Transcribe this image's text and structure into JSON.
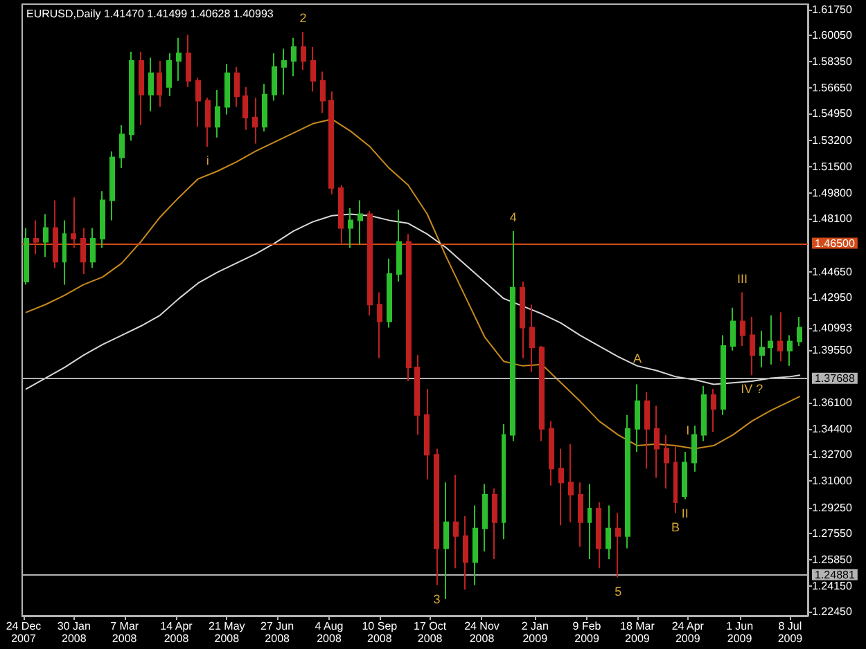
{
  "chart_data": {
    "type": "candlestick",
    "title": "EURUSD,Daily 1.41470 1.41499 1.40628 1.40993",
    "x": [
      "2007-12-26",
      "2008-01-02",
      "2008-01-09",
      "2008-01-16",
      "2008-01-23",
      "2008-01-30",
      "2008-02-06",
      "2008-02-13",
      "2008-02-20",
      "2008-02-27",
      "2008-03-05",
      "2008-03-12",
      "2008-03-19",
      "2008-03-26",
      "2008-04-02",
      "2008-04-09",
      "2008-04-16",
      "2008-04-23",
      "2008-04-30",
      "2008-05-07",
      "2008-05-14",
      "2008-05-21",
      "2008-05-28",
      "2008-06-04",
      "2008-06-11",
      "2008-06-18",
      "2008-06-25",
      "2008-07-02",
      "2008-07-09",
      "2008-07-16",
      "2008-07-23",
      "2008-07-30",
      "2008-08-06",
      "2008-08-13",
      "2008-08-20",
      "2008-08-27",
      "2008-09-03",
      "2008-09-10",
      "2008-09-17",
      "2008-09-24",
      "2008-10-01",
      "2008-10-08",
      "2008-10-15",
      "2008-10-22",
      "2008-10-29",
      "2008-11-05",
      "2008-11-12",
      "2008-11-19",
      "2008-11-26",
      "2008-12-03",
      "2008-12-10",
      "2008-12-17",
      "2008-12-24",
      "2008-12-31",
      "2009-01-07",
      "2009-01-14",
      "2009-01-21",
      "2009-01-28",
      "2009-02-04",
      "2009-02-11",
      "2009-02-18",
      "2009-02-25",
      "2009-03-04",
      "2009-03-11",
      "2009-03-18",
      "2009-03-25",
      "2009-04-01",
      "2009-04-08",
      "2009-04-15",
      "2009-04-22",
      "2009-04-29",
      "2009-05-06",
      "2009-05-13",
      "2009-05-20",
      "2009-05-27",
      "2009-06-03",
      "2009-06-10",
      "2009-06-17",
      "2009-06-24",
      "2009-07-01",
      "2009-07-08",
      "2009-07-15"
    ],
    "ohlc": [
      [
        1.44,
        1.475,
        1.438,
        1.468
      ],
      [
        1.468,
        1.48,
        1.458,
        1.466
      ],
      [
        1.466,
        1.484,
        1.456,
        1.475
      ],
      [
        1.475,
        1.493,
        1.449,
        1.453
      ],
      [
        1.453,
        1.48,
        1.438,
        1.471
      ],
      [
        1.471,
        1.495,
        1.462,
        1.468
      ],
      [
        1.468,
        1.475,
        1.445,
        1.453
      ],
      [
        1.453,
        1.475,
        1.449,
        1.468
      ],
      [
        1.468,
        1.499,
        1.462,
        1.493
      ],
      [
        1.493,
        1.525,
        1.48,
        1.521
      ],
      [
        1.521,
        1.542,
        1.514,
        1.536
      ],
      [
        1.536,
        1.59,
        1.532,
        1.584
      ],
      [
        1.584,
        1.59,
        1.542,
        1.562
      ],
      [
        1.562,
        1.586,
        1.551,
        1.576
      ],
      [
        1.576,
        1.584,
        1.554,
        1.562
      ],
      [
        1.567,
        1.589,
        1.561,
        1.584
      ],
      [
        1.584,
        1.599,
        1.571,
        1.589
      ],
      [
        1.589,
        1.601,
        1.567,
        1.571
      ],
      [
        1.571,
        1.573,
        1.541,
        1.558
      ],
      [
        1.558,
        1.56,
        1.528,
        1.541
      ],
      [
        1.541,
        1.565,
        1.534,
        1.554
      ],
      [
        1.554,
        1.582,
        1.549,
        1.576
      ],
      [
        1.576,
        1.58,
        1.554,
        1.561
      ],
      [
        1.561,
        1.567,
        1.539,
        1.547
      ],
      [
        1.547,
        1.56,
        1.53,
        1.541
      ],
      [
        1.541,
        1.569,
        1.538,
        1.562
      ],
      [
        1.562,
        1.589,
        1.558,
        1.58
      ],
      [
        1.58,
        1.592,
        1.562,
        1.584
      ],
      [
        1.584,
        1.599,
        1.574,
        1.593
      ],
      [
        1.593,
        1.603,
        1.578,
        1.584
      ],
      [
        1.584,
        1.593,
        1.564,
        1.571
      ],
      [
        1.571,
        1.577,
        1.55,
        1.558
      ],
      [
        1.558,
        1.564,
        1.497,
        1.501
      ],
      [
        1.501,
        1.503,
        1.465,
        1.475
      ],
      [
        1.475,
        1.488,
        1.462,
        1.48
      ],
      [
        1.48,
        1.493,
        1.464,
        1.484
      ],
      [
        1.484,
        1.486,
        1.418,
        1.425
      ],
      [
        1.425,
        1.433,
        1.39,
        1.414
      ],
      [
        1.414,
        1.455,
        1.41,
        1.445
      ],
      [
        1.445,
        1.487,
        1.44,
        1.466
      ],
      [
        1.466,
        1.471,
        1.375,
        1.384
      ],
      [
        1.384,
        1.392,
        1.34,
        1.353
      ],
      [
        1.353,
        1.37,
        1.311,
        1.327
      ],
      [
        1.327,
        1.331,
        1.242,
        1.266
      ],
      [
        1.266,
        1.309,
        1.233,
        1.283
      ],
      [
        1.283,
        1.314,
        1.253,
        1.274
      ],
      [
        1.274,
        1.287,
        1.239,
        1.257
      ],
      [
        1.257,
        1.294,
        1.242,
        1.279
      ],
      [
        1.279,
        1.308,
        1.264,
        1.301
      ],
      [
        1.301,
        1.305,
        1.259,
        1.283
      ],
      [
        1.283,
        1.347,
        1.272,
        1.34
      ],
      [
        1.34,
        1.473,
        1.336,
        1.436
      ],
      [
        1.436,
        1.44,
        1.39,
        1.41
      ],
      [
        1.41,
        1.425,
        1.381,
        1.397
      ],
      [
        1.397,
        1.398,
        1.336,
        1.344
      ],
      [
        1.344,
        1.349,
        1.307,
        1.318
      ],
      [
        1.318,
        1.331,
        1.281,
        1.309
      ],
      [
        1.309,
        1.334,
        1.283,
        1.301
      ],
      [
        1.301,
        1.309,
        1.267,
        1.283
      ],
      [
        1.283,
        1.308,
        1.259,
        1.292
      ],
      [
        1.292,
        1.296,
        1.253,
        1.266
      ],
      [
        1.266,
        1.294,
        1.259,
        1.279
      ],
      [
        1.279,
        1.289,
        1.247,
        1.274
      ],
      [
        1.274,
        1.353,
        1.266,
        1.344
      ],
      [
        1.344,
        1.373,
        1.329,
        1.362
      ],
      [
        1.362,
        1.368,
        1.318,
        1.344
      ],
      [
        1.344,
        1.359,
        1.312,
        1.331
      ],
      [
        1.331,
        1.34,
        1.305,
        1.322
      ],
      [
        1.322,
        1.333,
        1.289,
        1.296
      ],
      [
        1.3,
        1.329,
        1.298,
        1.322
      ],
      [
        1.322,
        1.346,
        1.316,
        1.34
      ],
      [
        1.34,
        1.372,
        1.336,
        1.366
      ],
      [
        1.366,
        1.37,
        1.342,
        1.357
      ],
      [
        1.357,
        1.405,
        1.353,
        1.398
      ],
      [
        1.398,
        1.423,
        1.395,
        1.414
      ],
      [
        1.414,
        1.433,
        1.398,
        1.405
      ],
      [
        1.405,
        1.417,
        1.379,
        1.392
      ],
      [
        1.392,
        1.408,
        1.384,
        1.397
      ],
      [
        1.397,
        1.418,
        1.386,
        1.401
      ],
      [
        1.401,
        1.42,
        1.388,
        1.395
      ],
      [
        1.395,
        1.405,
        1.385,
        1.401
      ],
      [
        1.401,
        1.417,
        1.398,
        1.41
      ]
    ],
    "colors": [
      "#2dbe2d",
      "#c02020",
      "#2dbe2d",
      "#c02020",
      "#2dbe2d",
      "#c02020",
      "#c02020",
      "#2dbe2d",
      "#2dbe2d",
      "#2dbe2d",
      "#2dbe2d",
      "#2dbe2d",
      "#c02020",
      "#2dbe2d",
      "#c02020",
      "#2dbe2d",
      "#2dbe2d",
      "#c02020",
      "#c02020",
      "#c02020",
      "#2dbe2d",
      "#2dbe2d",
      "#c02020",
      "#c02020",
      "#c02020",
      "#2dbe2d",
      "#2dbe2d",
      "#2dbe2d",
      "#2dbe2d",
      "#c02020",
      "#c02020",
      "#c02020",
      "#c02020",
      "#c02020",
      "#2dbe2d",
      "#2dbe2d",
      "#c02020",
      "#c02020",
      "#2dbe2d",
      "#2dbe2d",
      "#c02020",
      "#c02020",
      "#c02020",
      "#c02020",
      "#2dbe2d",
      "#c02020",
      "#c02020",
      "#2dbe2d",
      "#2dbe2d",
      "#c02020",
      "#2dbe2d",
      "#2dbe2d",
      "#c02020",
      "#c02020",
      "#c02020",
      "#c02020",
      "#c02020",
      "#c02020",
      "#c02020",
      "#2dbe2d",
      "#c02020",
      "#2dbe2d",
      "#c02020",
      "#2dbe2d",
      "#2dbe2d",
      "#c02020",
      "#c02020",
      "#c02020",
      "#c02020",
      "#2dbe2d",
      "#2dbe2d",
      "#2dbe2d",
      "#c02020",
      "#2dbe2d",
      "#2dbe2d",
      "#c02020",
      "#c02020",
      "#2dbe2d",
      "#2dbe2d",
      "#c02020",
      "#2dbe2d",
      "#2dbe2d"
    ],
    "series": [
      {
        "type": "line",
        "color": "#c88a1e",
        "x": [
          "2007-12-26",
          "2008-01-09",
          "2008-01-23",
          "2008-02-06",
          "2008-02-20",
          "2008-03-05",
          "2008-03-19",
          "2008-04-02",
          "2008-04-16",
          "2008-04-30",
          "2008-05-14",
          "2008-05-28",
          "2008-06-11",
          "2008-06-25",
          "2008-07-09",
          "2008-07-23",
          "2008-08-06",
          "2008-08-20",
          "2008-09-03",
          "2008-09-17",
          "2008-10-01",
          "2008-10-15",
          "2008-10-29",
          "2008-11-12",
          "2008-11-26",
          "2008-12-10",
          "2008-12-24",
          "2009-01-07",
          "2009-01-21",
          "2009-02-04",
          "2009-02-18",
          "2009-03-04",
          "2009-03-18",
          "2009-04-01",
          "2009-04-15",
          "2009-04-29",
          "2009-05-13",
          "2009-05-27",
          "2009-06-10",
          "2009-06-24",
          "2009-07-08",
          "2009-07-15"
        ],
        "values": [
          1.42,
          1.425,
          1.431,
          1.438,
          1.443,
          1.452,
          1.466,
          1.482,
          1.495,
          1.507,
          1.512,
          1.518,
          1.525,
          1.531,
          1.537,
          1.543,
          1.546,
          1.538,
          1.528,
          1.514,
          1.503,
          1.484,
          1.456,
          1.43,
          1.404,
          1.388,
          1.385,
          1.386,
          1.374,
          1.362,
          1.349,
          1.34,
          1.333,
          1.334,
          1.333,
          1.331,
          1.333,
          1.34,
          1.349,
          1.356,
          1.362,
          1.365
        ]
      },
      {
        "type": "line",
        "color": "#d8d8d8",
        "x": [
          "2007-12-26",
          "2008-01-09",
          "2008-01-23",
          "2008-02-06",
          "2008-02-20",
          "2008-03-05",
          "2008-03-19",
          "2008-04-02",
          "2008-04-16",
          "2008-04-30",
          "2008-05-14",
          "2008-05-28",
          "2008-06-11",
          "2008-06-25",
          "2008-07-09",
          "2008-07-23",
          "2008-08-06",
          "2008-08-20",
          "2008-09-03",
          "2008-09-17",
          "2008-10-01",
          "2008-10-15",
          "2008-10-29",
          "2008-11-12",
          "2008-11-26",
          "2008-12-10",
          "2008-12-24",
          "2009-01-07",
          "2009-01-21",
          "2009-02-04",
          "2009-02-18",
          "2009-03-04",
          "2009-03-18",
          "2009-04-01",
          "2009-04-15",
          "2009-04-29",
          "2009-05-13",
          "2009-05-27",
          "2009-06-10",
          "2009-06-24",
          "2009-07-08",
          "2009-07-15"
        ],
        "values": [
          1.37,
          1.377,
          1.384,
          1.392,
          1.399,
          1.405,
          1.411,
          1.418,
          1.429,
          1.439,
          1.446,
          1.452,
          1.458,
          1.465,
          1.473,
          1.479,
          1.483,
          1.484,
          1.483,
          1.48,
          1.478,
          1.471,
          1.462,
          1.451,
          1.44,
          1.429,
          1.424,
          1.419,
          1.413,
          1.405,
          1.398,
          1.391,
          1.385,
          1.382,
          1.378,
          1.376,
          1.373,
          1.374,
          1.375,
          1.377,
          1.378,
          1.379
        ]
      }
    ],
    "xlim": [
      "2007-12-23",
      "2009-07-21"
    ],
    "xticks": [
      {
        "value": "2007-12-24",
        "label": "24 Dec 2007"
      },
      {
        "value": "2008-01-30",
        "label": "30 Jan 2008"
      },
      {
        "value": "2008-03-07",
        "label": "7 Mar 2008"
      },
      {
        "value": "2008-04-14",
        "label": "14 Apr 2008"
      },
      {
        "value": "2008-05-21",
        "label": "21 May 2008"
      },
      {
        "value": "2008-06-27",
        "label": "27 Jun 2008"
      },
      {
        "value": "2008-08-04",
        "label": "4 Aug 2008"
      },
      {
        "value": "2008-09-10",
        "label": "10 Sep 2008"
      },
      {
        "value": "2008-10-17",
        "label": "17 Oct 2008"
      },
      {
        "value": "2008-11-24",
        "label": "24 Nov 2008"
      },
      {
        "value": "2009-01-02",
        "label": "2 Jan 2009"
      },
      {
        "value": "2009-02-09",
        "label": "9 Feb 2009"
      },
      {
        "value": "2009-03-18",
        "label": "18 Mar 2009"
      },
      {
        "value": "2009-04-24",
        "label": "24 Apr 2009"
      },
      {
        "value": "2009-06-01",
        "label": "1 Jun 2009"
      },
      {
        "value": "2009-07-08",
        "label": "8 Jul 2009"
      }
    ],
    "ylim": [
      1.222,
      1.621
    ],
    "yticks": [
      {
        "value": 1.6175,
        "label": "1.61750"
      },
      {
        "value": 1.6005,
        "label": "1.60050"
      },
      {
        "value": 1.5835,
        "label": "1.58350"
      },
      {
        "value": 1.5665,
        "label": "1.56650"
      },
      {
        "value": 1.5495,
        "label": "1.54950"
      },
      {
        "value": 1.532,
        "label": "1.53200"
      },
      {
        "value": 1.515,
        "label": "1.51500"
      },
      {
        "value": 1.498,
        "label": "1.49800"
      },
      {
        "value": 1.481,
        "label": "1.48100"
      },
      {
        "value": 1.4465,
        "label": "1.44650"
      },
      {
        "value": 1.4295,
        "label": "1.42950"
      },
      {
        "value": 1.40993,
        "label": "1.40993"
      },
      {
        "value": 1.3955,
        "label": "1.39550"
      },
      {
        "value": 1.361,
        "label": "1.36100"
      },
      {
        "value": 1.344,
        "label": "1.34400"
      },
      {
        "value": 1.327,
        "label": "1.32700"
      },
      {
        "value": 1.31,
        "label": "1.31000"
      },
      {
        "value": 1.2925,
        "label": "1.29250"
      },
      {
        "value": 1.2755,
        "label": "1.27550"
      },
      {
        "value": 1.2585,
        "label": "1.25850"
      },
      {
        "value": 1.2415,
        "label": "1.24150"
      },
      {
        "value": 1.2245,
        "label": "1.22450"
      }
    ],
    "ref_lines": [
      {
        "axis": "y",
        "value": 1.465,
        "label": "1.46500",
        "color": "#d24b19"
      },
      {
        "axis": "y",
        "value": 1.37688,
        "label": "1.37688",
        "color": "#b4b4b4"
      },
      {
        "axis": "y",
        "value": 1.24881,
        "label": "1.24881",
        "color": "#b4b4b4"
      }
    ],
    "annotations": [
      {
        "text": "i",
        "x": "2008-05-07",
        "y": 1.528
      },
      {
        "text": "2",
        "x": "2008-07-16",
        "y": 1.603
      },
      {
        "text": "3",
        "x": "2008-10-22",
        "y": 1.242
      },
      {
        "text": "4",
        "x": "2008-12-17",
        "y": 1.473
      },
      {
        "text": "5",
        "x": "2009-03-04",
        "y": 1.247
      },
      {
        "text": "A",
        "x": "2009-03-18",
        "y": 1.39
      },
      {
        "text": "B",
        "x": "2009-04-15",
        "y": 1.289
      },
      {
        "text": "I",
        "x": "2009-04-24",
        "y": 1.343
      },
      {
        "text": "II",
        "x": "2009-04-22",
        "y": 1.298
      },
      {
        "text": "III",
        "x": "2009-06-03",
        "y": 1.433
      },
      {
        "text": "IV ?",
        "x": "2009-06-10",
        "y": 1.379
      }
    ],
    "marker": "none"
  }
}
